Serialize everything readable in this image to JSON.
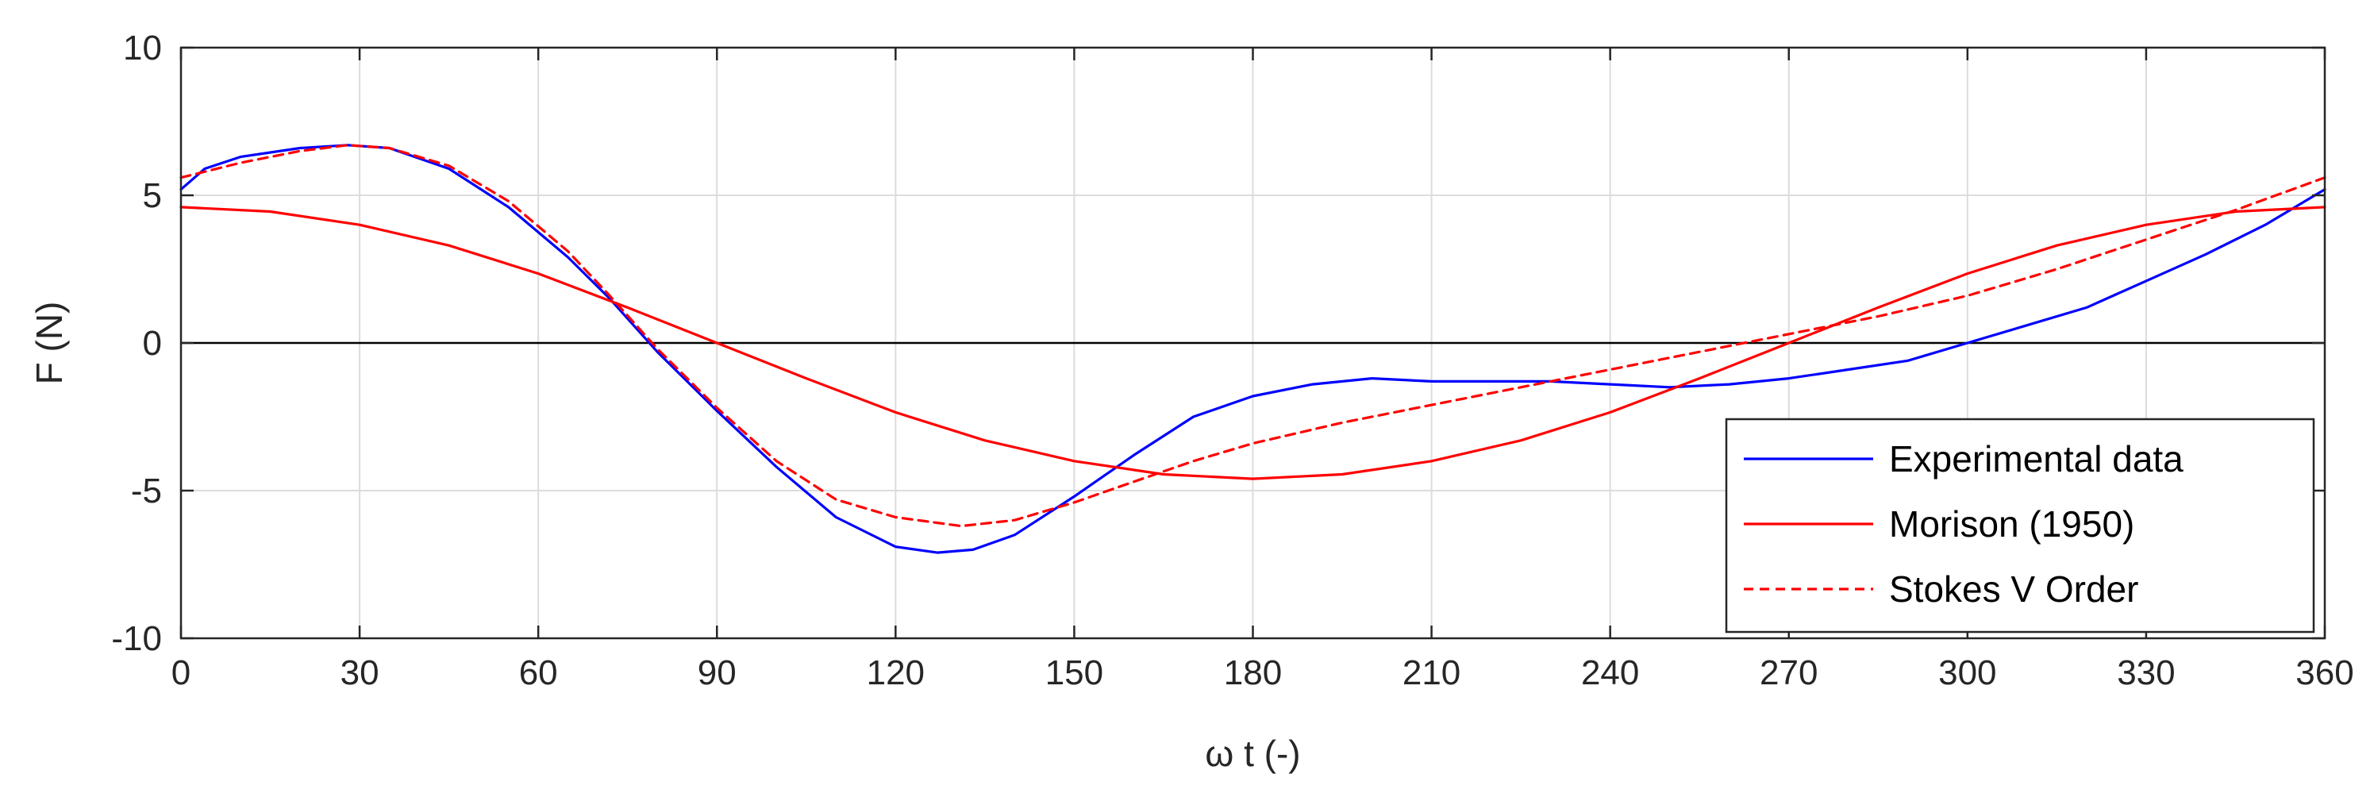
{
  "chart_data": {
    "type": "line",
    "xlabel": "ω t (-)",
    "ylabel": "F (N)",
    "xlim": [
      0,
      360
    ],
    "ylim": [
      -10,
      10
    ],
    "xticks": [
      0,
      30,
      60,
      90,
      120,
      150,
      180,
      210,
      240,
      270,
      300,
      330,
      360
    ],
    "yticks": [
      -10,
      -5,
      0,
      5,
      10
    ],
    "grid": true,
    "zero_line": true,
    "legend_position": "bottom-right",
    "series": [
      {
        "name": "Experimental data",
        "color": "#0000ff",
        "dash": "solid",
        "x": [
          0,
          4,
          10,
          20,
          28,
          35,
          45,
          55,
          65,
          72,
          80,
          90,
          100,
          110,
          120,
          127,
          133,
          140,
          150,
          160,
          170,
          180,
          190,
          200,
          210,
          220,
          230,
          240,
          250,
          260,
          270,
          280,
          290,
          300,
          310,
          320,
          330,
          340,
          350,
          360
        ],
        "y": [
          5.2,
          5.9,
          6.3,
          6.6,
          6.7,
          6.6,
          5.9,
          4.6,
          2.9,
          1.5,
          -0.3,
          -2.3,
          -4.2,
          -5.9,
          -6.9,
          -7.1,
          -7.0,
          -6.5,
          -5.2,
          -3.8,
          -2.5,
          -1.8,
          -1.4,
          -1.2,
          -1.3,
          -1.3,
          -1.3,
          -1.4,
          -1.5,
          -1.4,
          -1.2,
          -0.9,
          -0.6,
          0.0,
          0.6,
          1.2,
          2.1,
          3.0,
          4.0,
          5.2
        ]
      },
      {
        "name": "Morison (1950)",
        "color": "#ff0000",
        "dash": "solid",
        "x": [
          0,
          15,
          30,
          45,
          60,
          75,
          90,
          105,
          120,
          135,
          150,
          165,
          180,
          195,
          210,
          225,
          240,
          255,
          270,
          285,
          300,
          315,
          330,
          345,
          360
        ],
        "y": [
          4.6,
          4.45,
          4.0,
          3.3,
          2.35,
          1.2,
          0.0,
          -1.2,
          -2.35,
          -3.3,
          -4.0,
          -4.45,
          -4.6,
          -4.45,
          -4.0,
          -3.3,
          -2.35,
          -1.2,
          0.0,
          1.2,
          2.35,
          3.3,
          4.0,
          4.45,
          4.6
        ]
      },
      {
        "name": "Stokes V Order",
        "color": "#ff0000",
        "dash": "dashed",
        "x": [
          0,
          10,
          20,
          28,
          35,
          45,
          55,
          65,
          72,
          80,
          90,
          100,
          110,
          120,
          131,
          140,
          150,
          160,
          170,
          180,
          195,
          210,
          225,
          240,
          255,
          270,
          285,
          300,
          315,
          330,
          345,
          360
        ],
        "y": [
          5.6,
          6.1,
          6.5,
          6.7,
          6.6,
          6.0,
          4.8,
          3.1,
          1.6,
          -0.2,
          -2.2,
          -4.0,
          -5.3,
          -5.9,
          -6.2,
          -6.0,
          -5.4,
          -4.7,
          -4.0,
          -3.4,
          -2.7,
          -2.1,
          -1.5,
          -0.9,
          -0.3,
          0.3,
          0.9,
          1.6,
          2.5,
          3.5,
          4.5,
          5.6
        ]
      }
    ]
  }
}
